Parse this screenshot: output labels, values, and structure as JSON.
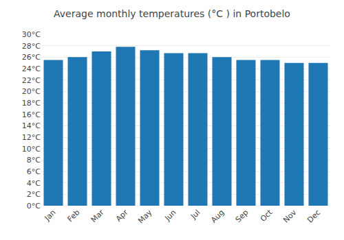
{
  "chart_data": {
    "type": "bar",
    "title": "Average monthly temperatures (°C ) in Portobelo",
    "categories": [
      "Jan",
      "Feb",
      "Mar",
      "Apr",
      "May",
      "Jun",
      "Jul",
      "Aug",
      "Sep",
      "Oct",
      "Nov",
      "Dec"
    ],
    "values": [
      25.5,
      26.0,
      27.0,
      27.8,
      27.2,
      26.7,
      26.7,
      26.0,
      25.5,
      25.5,
      25.0,
      25.0
    ],
    "ylim": [
      0,
      30
    ],
    "yticks": [
      {
        "value": 0,
        "label": "0°C"
      },
      {
        "value": 2,
        "label": "2°C"
      },
      {
        "value": 4,
        "label": "4°C"
      },
      {
        "value": 6,
        "label": "6°C"
      },
      {
        "value": 8,
        "label": "8°C"
      },
      {
        "value": 10,
        "label": "10°C"
      },
      {
        "value": 12,
        "label": "12°C"
      },
      {
        "value": 14,
        "label": "14°C"
      },
      {
        "value": 16,
        "label": "16°C"
      },
      {
        "value": 18,
        "label": "18°C"
      },
      {
        "value": 20,
        "label": "20°C"
      },
      {
        "value": 22,
        "label": "22°C"
      },
      {
        "value": 24,
        "label": "24°C"
      },
      {
        "value": 26,
        "label": "26°C"
      },
      {
        "value": 28,
        "label": "28°C"
      },
      {
        "value": 30,
        "label": "30°C"
      }
    ],
    "grid": true
  }
}
